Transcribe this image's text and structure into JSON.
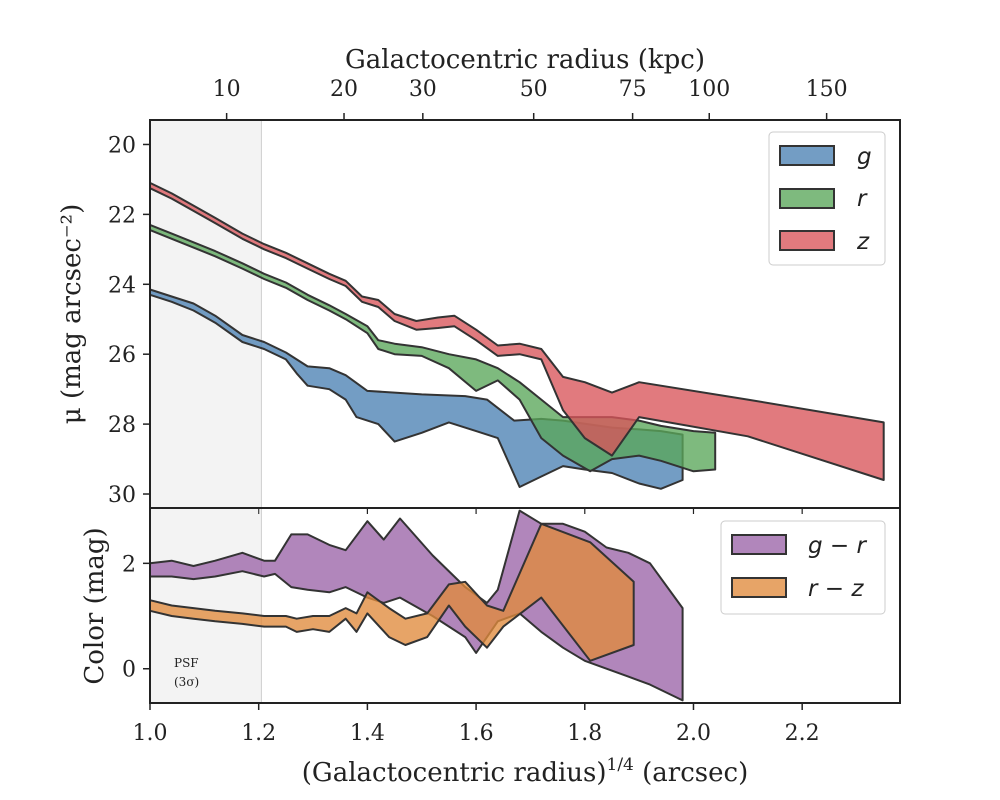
{
  "chart_data": [
    {
      "type": "area",
      "panel": "top",
      "ylabel": "μ (mag arcsec⁻²)",
      "top_xlabel": "Galactocentric radius (kpc)",
      "xlim": [
        1.0,
        2.38
      ],
      "ylim": [
        30.4,
        19.3
      ],
      "y_inverted": true,
      "yticks": [
        20,
        22,
        24,
        26,
        28,
        30
      ],
      "top_ticks": [
        {
          "label": "10",
          "value": 1.141
        },
        {
          "label": "20",
          "value": 1.357
        },
        {
          "label": "30",
          "value": 1.502
        },
        {
          "label": "50",
          "value": 1.706
        },
        {
          "label": "75",
          "value": 1.888
        },
        {
          "label": "100",
          "value": 2.029
        },
        {
          "label": "150",
          "value": 2.245
        }
      ],
      "shaded_region": {
        "x0": 1.0,
        "x1": 1.205,
        "label": "PSF (3σ)"
      },
      "legend_position": "top-right",
      "series": [
        {
          "name": "g",
          "color": "#4c82b4",
          "upper": [
            [
              1.0,
              24.15
            ],
            [
              1.04,
              24.35
            ],
            [
              1.08,
              24.55
            ],
            [
              1.12,
              24.9
            ],
            [
              1.17,
              25.45
            ],
            [
              1.21,
              25.65
            ],
            [
              1.25,
              25.95
            ],
            [
              1.29,
              26.35
            ],
            [
              1.33,
              26.4
            ],
            [
              1.36,
              26.6
            ],
            [
              1.4,
              27.05
            ],
            [
              1.45,
              27.1
            ],
            [
              1.5,
              27.15
            ],
            [
              1.58,
              27.2
            ],
            [
              1.62,
              27.3
            ],
            [
              1.67,
              27.9
            ],
            [
              1.72,
              27.85
            ],
            [
              1.76,
              27.9
            ],
            [
              1.85,
              28.1
            ],
            [
              1.9,
              28.15
            ],
            [
              1.94,
              28.2
            ],
            [
              1.98,
              28.3
            ]
          ],
          "lower": [
            [
              1.0,
              24.3
            ],
            [
              1.04,
              24.5
            ],
            [
              1.08,
              24.75
            ],
            [
              1.12,
              25.1
            ],
            [
              1.17,
              25.65
            ],
            [
              1.21,
              25.85
            ],
            [
              1.25,
              26.15
            ],
            [
              1.27,
              26.55
            ],
            [
              1.29,
              26.9
            ],
            [
              1.33,
              27.0
            ],
            [
              1.36,
              27.3
            ],
            [
              1.38,
              27.8
            ],
            [
              1.42,
              28.0
            ],
            [
              1.45,
              28.5
            ],
            [
              1.5,
              28.25
            ],
            [
              1.55,
              27.95
            ],
            [
              1.6,
              28.2
            ],
            [
              1.64,
              28.4
            ],
            [
              1.68,
              29.8
            ],
            [
              1.72,
              29.5
            ],
            [
              1.76,
              29.2
            ],
            [
              1.8,
              29.3
            ],
            [
              1.85,
              29.4
            ],
            [
              1.9,
              29.7
            ],
            [
              1.94,
              29.85
            ],
            [
              1.98,
              29.6
            ]
          ]
        },
        {
          "name": "r",
          "color": "#5aa65a",
          "upper": [
            [
              1.0,
              22.3
            ],
            [
              1.04,
              22.55
            ],
            [
              1.08,
              22.8
            ],
            [
              1.12,
              23.05
            ],
            [
              1.17,
              23.4
            ],
            [
              1.21,
              23.7
            ],
            [
              1.25,
              23.95
            ],
            [
              1.29,
              24.3
            ],
            [
              1.33,
              24.6
            ],
            [
              1.36,
              24.85
            ],
            [
              1.4,
              25.2
            ],
            [
              1.42,
              25.6
            ],
            [
              1.45,
              25.7
            ],
            [
              1.5,
              25.8
            ],
            [
              1.55,
              26.0
            ],
            [
              1.6,
              26.15
            ],
            [
              1.64,
              26.4
            ],
            [
              1.68,
              26.8
            ],
            [
              1.72,
              27.3
            ],
            [
              1.76,
              27.8
            ],
            [
              1.85,
              27.8
            ],
            [
              1.9,
              27.9
            ],
            [
              1.94,
              28.05
            ],
            [
              2.0,
              28.2
            ],
            [
              2.04,
              28.25
            ]
          ],
          "lower": [
            [
              1.0,
              22.45
            ],
            [
              1.04,
              22.7
            ],
            [
              1.08,
              22.95
            ],
            [
              1.12,
              23.2
            ],
            [
              1.17,
              23.55
            ],
            [
              1.21,
              23.85
            ],
            [
              1.25,
              24.1
            ],
            [
              1.29,
              24.45
            ],
            [
              1.33,
              24.75
            ],
            [
              1.36,
              25.0
            ],
            [
              1.4,
              25.4
            ],
            [
              1.42,
              25.85
            ],
            [
              1.45,
              26.0
            ],
            [
              1.5,
              26.05
            ],
            [
              1.55,
              26.4
            ],
            [
              1.6,
              27.05
            ],
            [
              1.64,
              26.75
            ],
            [
              1.68,
              27.3
            ],
            [
              1.72,
              28.4
            ],
            [
              1.76,
              28.9
            ],
            [
              1.81,
              29.35
            ],
            [
              1.85,
              29.0
            ],
            [
              1.9,
              28.9
            ],
            [
              1.94,
              29.05
            ],
            [
              2.0,
              29.35
            ],
            [
              2.04,
              29.3
            ]
          ]
        },
        {
          "name": "z",
          "color": "#d9545a",
          "upper": [
            [
              1.0,
              21.1
            ],
            [
              1.04,
              21.4
            ],
            [
              1.08,
              21.75
            ],
            [
              1.12,
              22.1
            ],
            [
              1.17,
              22.55
            ],
            [
              1.21,
              22.85
            ],
            [
              1.25,
              23.1
            ],
            [
              1.29,
              23.4
            ],
            [
              1.33,
              23.7
            ],
            [
              1.36,
              23.9
            ],
            [
              1.39,
              24.35
            ],
            [
              1.42,
              24.45
            ],
            [
              1.45,
              24.85
            ],
            [
              1.49,
              25.05
            ],
            [
              1.53,
              24.95
            ],
            [
              1.56,
              24.9
            ],
            [
              1.6,
              25.3
            ],
            [
              1.64,
              25.75
            ],
            [
              1.68,
              25.7
            ],
            [
              1.72,
              25.85
            ],
            [
              1.76,
              26.65
            ],
            [
              1.8,
              26.8
            ],
            [
              1.85,
              27.1
            ],
            [
              1.9,
              26.8
            ],
            [
              2.1,
              27.3
            ],
            [
              2.35,
              27.95
            ]
          ],
          "lower": [
            [
              1.0,
              21.25
            ],
            [
              1.04,
              21.55
            ],
            [
              1.08,
              21.9
            ],
            [
              1.12,
              22.25
            ],
            [
              1.17,
              22.7
            ],
            [
              1.21,
              23.0
            ],
            [
              1.25,
              23.25
            ],
            [
              1.29,
              23.55
            ],
            [
              1.33,
              23.85
            ],
            [
              1.36,
              24.05
            ],
            [
              1.39,
              24.5
            ],
            [
              1.42,
              24.65
            ],
            [
              1.45,
              25.05
            ],
            [
              1.49,
              25.3
            ],
            [
              1.53,
              25.25
            ],
            [
              1.56,
              25.2
            ],
            [
              1.6,
              25.6
            ],
            [
              1.64,
              26.05
            ],
            [
              1.68,
              26.0
            ],
            [
              1.72,
              26.15
            ],
            [
              1.76,
              27.6
            ],
            [
              1.8,
              28.4
            ],
            [
              1.85,
              28.9
            ],
            [
              1.9,
              27.8
            ],
            [
              2.1,
              28.35
            ],
            [
              2.35,
              29.6
            ]
          ]
        }
      ]
    },
    {
      "type": "area",
      "panel": "bottom",
      "xlabel": "(Galactocentric radius)",
      "xlabel_sup": "1/4",
      "xlabel_suffix": " (arcsec)",
      "ylabel": "Color (mag)",
      "xlim": [
        1.0,
        2.38
      ],
      "ylim": [
        -0.65,
        3.05
      ],
      "xticks": [
        1.0,
        1.2,
        1.4,
        1.6,
        1.8,
        2.0,
        2.2
      ],
      "xtick_labels": [
        "1.0",
        "1.2",
        "1.4",
        "1.6",
        "1.8",
        "2.0",
        "2.2"
      ],
      "yticks": [
        0,
        2
      ],
      "legend_position": "top-right",
      "series": [
        {
          "name": "g − r",
          "color": "#9b64a8",
          "upper": [
            [
              1.0,
              2.0
            ],
            [
              1.04,
              2.05
            ],
            [
              1.08,
              1.95
            ],
            [
              1.12,
              2.05
            ],
            [
              1.17,
              2.2
            ],
            [
              1.21,
              2.05
            ],
            [
              1.23,
              2.05
            ],
            [
              1.26,
              2.55
            ],
            [
              1.29,
              2.55
            ],
            [
              1.33,
              2.35
            ],
            [
              1.36,
              2.25
            ],
            [
              1.4,
              2.8
            ],
            [
              1.43,
              2.45
            ],
            [
              1.46,
              2.85
            ],
            [
              1.52,
              2.15
            ],
            [
              1.58,
              1.55
            ],
            [
              1.62,
              1.25
            ],
            [
              1.64,
              1.5
            ],
            [
              1.68,
              3.0
            ],
            [
              1.72,
              2.75
            ],
            [
              1.76,
              2.75
            ],
            [
              1.8,
              2.6
            ],
            [
              1.84,
              2.3
            ],
            [
              1.88,
              2.2
            ],
            [
              1.92,
              2.0
            ],
            [
              1.98,
              1.15
            ]
          ],
          "lower": [
            [
              1.0,
              1.75
            ],
            [
              1.04,
              1.75
            ],
            [
              1.08,
              1.7
            ],
            [
              1.12,
              1.75
            ],
            [
              1.17,
              1.85
            ],
            [
              1.21,
              1.75
            ],
            [
              1.23,
              1.8
            ],
            [
              1.26,
              1.55
            ],
            [
              1.29,
              1.5
            ],
            [
              1.33,
              1.45
            ],
            [
              1.36,
              1.55
            ],
            [
              1.4,
              1.35
            ],
            [
              1.43,
              1.25
            ],
            [
              1.46,
              1.35
            ],
            [
              1.52,
              1.0
            ],
            [
              1.58,
              0.6
            ],
            [
              1.6,
              0.3
            ],
            [
              1.64,
              0.9
            ],
            [
              1.68,
              1.05
            ],
            [
              1.72,
              0.7
            ],
            [
              1.76,
              0.4
            ],
            [
              1.8,
              0.15
            ],
            [
              1.84,
              0.0
            ],
            [
              1.88,
              -0.15
            ],
            [
              1.92,
              -0.3
            ],
            [
              1.98,
              -0.6
            ]
          ]
        },
        {
          "name": "r − z",
          "color": "#e08a3c",
          "upper": [
            [
              1.0,
              1.3
            ],
            [
              1.04,
              1.2
            ],
            [
              1.08,
              1.15
            ],
            [
              1.12,
              1.1
            ],
            [
              1.17,
              1.05
            ],
            [
              1.21,
              1.0
            ],
            [
              1.25,
              1.0
            ],
            [
              1.27,
              0.95
            ],
            [
              1.3,
              1.0
            ],
            [
              1.33,
              1.0
            ],
            [
              1.36,
              1.15
            ],
            [
              1.38,
              1.05
            ],
            [
              1.4,
              1.45
            ],
            [
              1.44,
              1.15
            ],
            [
              1.47,
              0.95
            ],
            [
              1.51,
              1.05
            ],
            [
              1.55,
              1.6
            ],
            [
              1.58,
              1.65
            ],
            [
              1.62,
              1.2
            ],
            [
              1.65,
              1.1
            ],
            [
              1.72,
              2.75
            ],
            [
              1.81,
              2.4
            ],
            [
              1.89,
              1.65
            ]
          ],
          "lower": [
            [
              1.0,
              1.1
            ],
            [
              1.04,
              1.0
            ],
            [
              1.08,
              0.95
            ],
            [
              1.12,
              0.9
            ],
            [
              1.17,
              0.85
            ],
            [
              1.21,
              0.8
            ],
            [
              1.25,
              0.8
            ],
            [
              1.27,
              0.7
            ],
            [
              1.3,
              0.75
            ],
            [
              1.33,
              0.7
            ],
            [
              1.36,
              0.95
            ],
            [
              1.38,
              0.7
            ],
            [
              1.4,
              1.05
            ],
            [
              1.44,
              0.6
            ],
            [
              1.47,
              0.45
            ],
            [
              1.51,
              0.6
            ],
            [
              1.55,
              1.2
            ],
            [
              1.58,
              0.8
            ],
            [
              1.62,
              0.4
            ],
            [
              1.65,
              0.8
            ],
            [
              1.72,
              1.35
            ],
            [
              1.81,
              0.15
            ],
            [
              1.89,
              0.45
            ]
          ]
        }
      ]
    }
  ]
}
